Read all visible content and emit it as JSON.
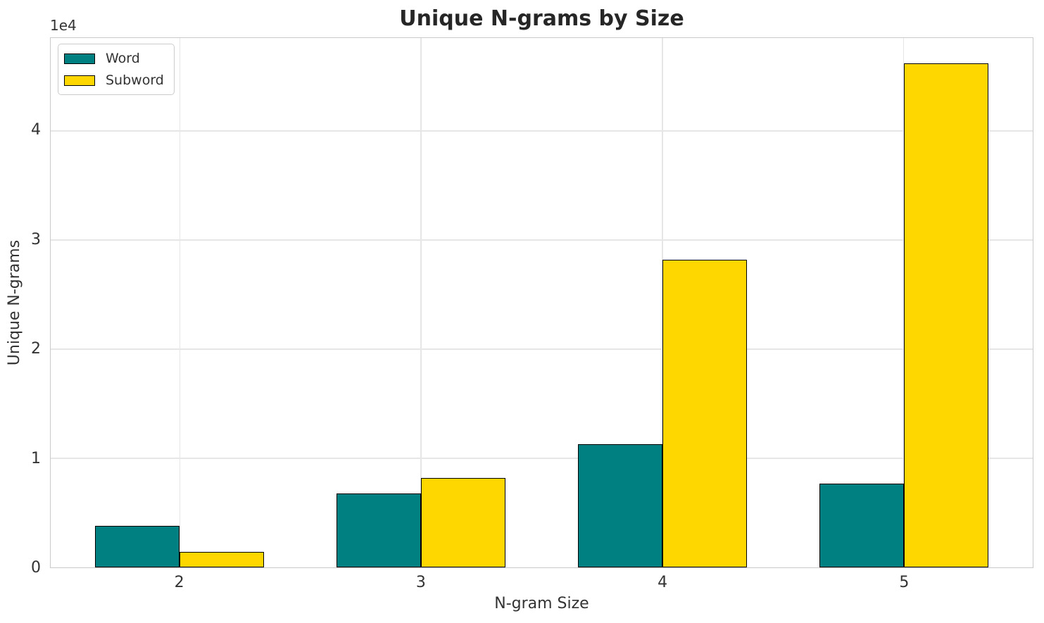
{
  "title": "Unique N-grams by Size",
  "axes": {
    "xlabel": "N-gram Size",
    "ylabel": "Unique N-grams",
    "offset_label": "1e4"
  },
  "legend": {
    "position": "upper left",
    "items": [
      {
        "label": "Word",
        "color": "#008080"
      },
      {
        "label": "Subword",
        "color": "#FFD700"
      }
    ]
  },
  "colors": {
    "word_bar": "#008080",
    "subword_bar": "#FFD700",
    "bar_edge": "#000000",
    "grid": "#e6e6e6",
    "spine": "#c9c9c9",
    "text": "#333333",
    "title_text": "#262626",
    "background": "#ffffff"
  },
  "chart_data": {
    "type": "bar",
    "title": "Unique N-grams by Size",
    "xlabel": "N-gram Size",
    "ylabel": "Unique N-grams",
    "categories": [
      "2",
      "3",
      "4",
      "5"
    ],
    "x_positions": [
      2,
      3,
      4,
      5
    ],
    "series": [
      {
        "name": "Word",
        "color": "#008080",
        "values": [
          3800,
          6800,
          11300,
          7700
        ]
      },
      {
        "name": "Subword",
        "color": "#FFD700",
        "values": [
          1400,
          8200,
          28200,
          46200
        ]
      }
    ],
    "bar_width_units": 0.35,
    "xlim": [
      1.465,
      5.535
    ],
    "ylim": [
      0,
      48500
    ],
    "yticks": [
      0,
      10000,
      20000,
      30000,
      40000
    ],
    "ytick_labels": [
      "0",
      "1",
      "2",
      "3",
      "4"
    ],
    "y_offset_text": "1e4",
    "grid": true,
    "legend_position": "upper left"
  }
}
